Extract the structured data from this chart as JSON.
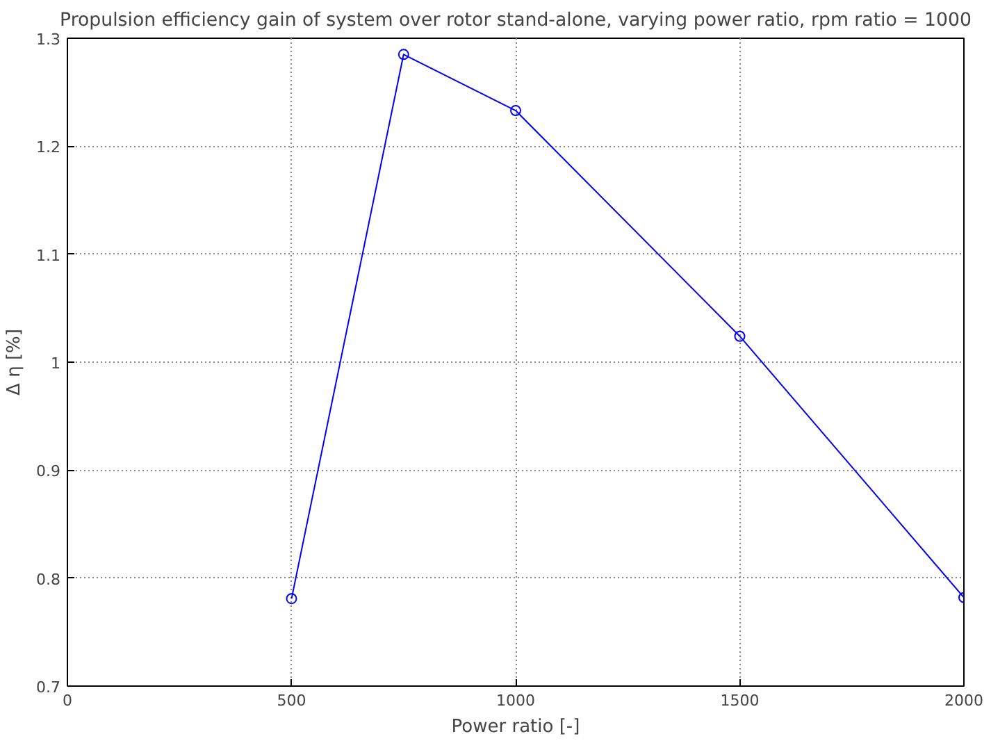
{
  "chart_data": {
    "type": "line",
    "title": "Propulsion efficiency gain of system over rotor stand-alone, varying power ratio, rpm ratio = 1000",
    "xlabel": "Power ratio [-]",
    "ylabel": "Δ η [%]",
    "x": [
      500,
      750,
      1000,
      1500,
      2000
    ],
    "series": [
      {
        "color": "#0000ff",
        "values": [
          0.781,
          1.285,
          1.233,
          1.024,
          0.782
        ]
      }
    ],
    "xlim": [
      0,
      2000
    ],
    "xticks": [
      0,
      500,
      1000,
      1500,
      2000
    ],
    "ylim": [
      0.7,
      1.3
    ],
    "yticks": [
      0.7,
      0.8,
      0.9,
      1,
      1.1,
      1.2,
      1.3
    ],
    "grid": true,
    "marker": "circle",
    "line_style": "solid"
  }
}
